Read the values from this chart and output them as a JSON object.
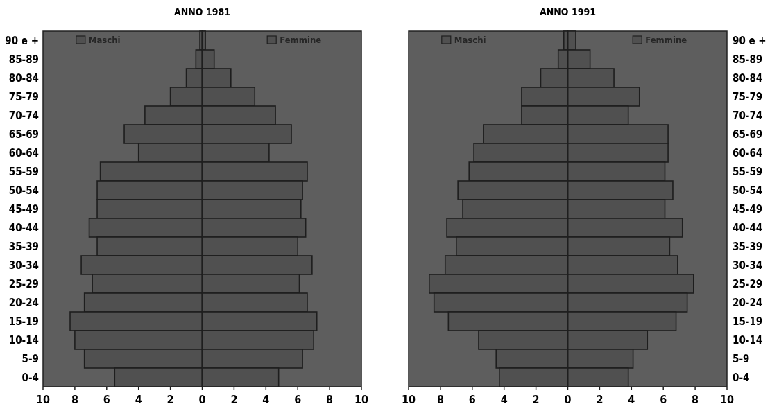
{
  "chart_data": [
    {
      "type": "bar",
      "title": "ANNO 1981",
      "orientation": "horizontal",
      "stacked": true,
      "legend": "top",
      "categories": [
        "90 e +",
        "85-89",
        "80-84",
        "75-79",
        "70-74",
        "65-69",
        "60-64",
        "55-59",
        "50-54",
        "45-49",
        "40-44",
        "35-39",
        "30-34",
        "25-29",
        "20-24",
        "15-19",
        "10-14",
        "5-9",
        "0-4"
      ],
      "series": [
        {
          "name": "Maschi",
          "color": "#505050",
          "values": [
            -0.15,
            -0.4,
            -1.0,
            -2.0,
            -3.6,
            -4.9,
            -4.0,
            -6.4,
            -6.6,
            -6.6,
            -7.1,
            -6.6,
            -7.6,
            -6.9,
            -7.4,
            -8.3,
            -8.0,
            -7.4,
            -5.5
          ]
        },
        {
          "name": "Femmine",
          "color": "#505050",
          "values": [
            0.2,
            0.75,
            1.8,
            3.3,
            4.6,
            5.6,
            4.2,
            6.6,
            6.3,
            6.2,
            6.5,
            6.0,
            6.9,
            6.1,
            6.6,
            7.2,
            7.0,
            6.3,
            4.8
          ]
        }
      ],
      "xlim": [
        -10,
        10
      ],
      "xticks": [
        {
          "value": -10,
          "label": "10"
        },
        {
          "value": -8,
          "label": "8"
        },
        {
          "value": -6,
          "label": "6"
        },
        {
          "value": -4,
          "label": "4"
        },
        {
          "value": -2,
          "label": "2"
        },
        0,
        2,
        4,
        6,
        8,
        10
      ]
    },
    {
      "type": "bar",
      "title": "ANNO 1991",
      "orientation": "horizontal",
      "stacked": true,
      "legend": "top",
      "categories": [
        "90 e +",
        "85-89",
        "80-84",
        "75-79",
        "70-74",
        "65-69",
        "60-64",
        "55-59",
        "50-54",
        "45-49",
        "40-44",
        "35-39",
        "30-34",
        "25-29",
        "20-24",
        "15-19",
        "10-14",
        "5-9",
        "0-4"
      ],
      "series": [
        {
          "name": "Maschi",
          "color": "#505050",
          "values": [
            -0.25,
            -0.6,
            -1.7,
            -2.9,
            -2.9,
            -5.3,
            -5.9,
            -6.2,
            -6.9,
            -6.6,
            -7.6,
            -7.0,
            -7.7,
            -8.7,
            -8.4,
            -7.5,
            -5.6,
            -4.5,
            -4.3
          ]
        },
        {
          "name": "Femmine",
          "color": "#505050",
          "values": [
            0.5,
            1.4,
            2.9,
            4.5,
            3.8,
            6.3,
            6.3,
            6.1,
            6.6,
            6.1,
            7.2,
            6.4,
            6.9,
            7.9,
            7.5,
            6.8,
            5.0,
            4.1,
            3.8
          ]
        }
      ],
      "xlim": [
        -10,
        10
      ],
      "xticks": [
        {
          "value": -10,
          "label": "10"
        },
        {
          "value": -8,
          "label": "8"
        },
        {
          "value": -6,
          "label": "6"
        },
        {
          "value": -4,
          "label": "4"
        },
        {
          "value": -2,
          "label": "2"
        },
        0,
        2,
        4,
        6,
        8,
        10
      ]
    }
  ]
}
